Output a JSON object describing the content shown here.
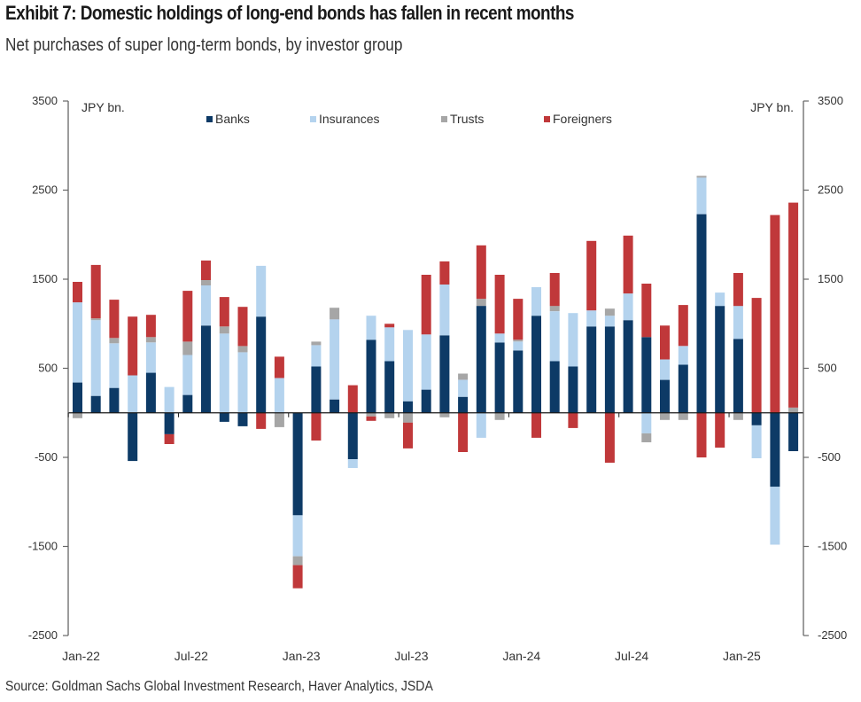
{
  "header": {
    "title": "Exhibit 7: Domestic holdings of long-end bonds has fallen in recent months",
    "subtitle": "Net purchases of super long-term bonds, by investor group"
  },
  "footer": {
    "source": "Source: Goldman Sachs Global Investment Research, Haver Analytics, JSDA"
  },
  "chart_data": {
    "type": "bar",
    "stacked": true,
    "title": "Exhibit 7: Domestic holdings of long-end bonds has fallen in recent months",
    "subtitle": "Net purchases of super long-term bonds, by investor group",
    "xlabel": "",
    "ylabel": "JPY bn.",
    "ylabel_left": "JPY bn.",
    "ylabel_right": "JPY bn.",
    "ylim": [
      -2500,
      3500
    ],
    "yticks": [
      3500,
      2500,
      1500,
      500,
      -500,
      -1500,
      -2500
    ],
    "grid": false,
    "legend_position": "top-center",
    "x_tick_labels": [
      {
        "index": 0,
        "label": "Jan-22"
      },
      {
        "index": 6,
        "label": "Jul-22"
      },
      {
        "index": 12,
        "label": "Jan-23"
      },
      {
        "index": 18,
        "label": "Jul-23"
      },
      {
        "index": 24,
        "label": "Jan-24"
      },
      {
        "index": 30,
        "label": "Jul-24"
      },
      {
        "index": 36,
        "label": "Jan-25"
      }
    ],
    "categories": [
      "Jan-22",
      "Feb-22",
      "Mar-22",
      "Apr-22",
      "May-22",
      "Jun-22",
      "Jul-22",
      "Aug-22",
      "Sep-22",
      "Oct-22",
      "Nov-22",
      "Dec-22",
      "Jan-23",
      "Feb-23",
      "Mar-23",
      "Apr-23",
      "May-23",
      "Jun-23",
      "Jul-23",
      "Aug-23",
      "Sep-23",
      "Oct-23",
      "Nov-23",
      "Dec-23",
      "Jan-24",
      "Feb-24",
      "Mar-24",
      "Apr-24",
      "May-24",
      "Jun-24",
      "Jul-24",
      "Aug-24",
      "Sep-24",
      "Oct-24",
      "Nov-24",
      "Dec-24",
      "Jan-25",
      "Feb-25",
      "Mar-25",
      "Apr-25"
    ],
    "series": [
      {
        "name": "Banks",
        "color": "#0d3a66",
        "values": [
          340,
          190,
          280,
          -540,
          450,
          -240,
          200,
          980,
          -100,
          -150,
          1080,
          0,
          -1150,
          520,
          150,
          -520,
          820,
          580,
          130,
          260,
          870,
          180,
          1200,
          790,
          700,
          1090,
          580,
          520,
          970,
          970,
          1040,
          850,
          370,
          540,
          2230,
          1200,
          830,
          -140,
          -830,
          -430
        ]
      },
      {
        "name": "Insurances",
        "color": "#b4d3ee",
        "values": [
          900,
          850,
          500,
          420,
          340,
          290,
          450,
          450,
          890,
          680,
          570,
          390,
          -460,
          240,
          900,
          -100,
          270,
          380,
          800,
          620,
          570,
          190,
          -280,
          100,
          100,
          320,
          560,
          600,
          180,
          120,
          300,
          -230,
          230,
          210,
          410,
          150,
          370,
          -370,
          -650,
          0
        ]
      },
      {
        "name": "Trusts",
        "color": "#a6a6a6",
        "values": [
          -60,
          20,
          60,
          0,
          60,
          0,
          150,
          60,
          80,
          70,
          0,
          -160,
          -100,
          40,
          130,
          0,
          -40,
          -60,
          -110,
          0,
          -50,
          70,
          80,
          -80,
          20,
          0,
          60,
          0,
          0,
          80,
          0,
          -100,
          -80,
          -80,
          20,
          0,
          -80,
          0,
          0,
          60
        ]
      },
      {
        "name": "Foreigners",
        "color": "#c0383a",
        "values": [
          230,
          600,
          430,
          660,
          250,
          -110,
          570,
          220,
          330,
          440,
          -180,
          240,
          -260,
          -310,
          0,
          310,
          -50,
          40,
          -290,
          670,
          260,
          -440,
          600,
          660,
          460,
          -280,
          370,
          -170,
          780,
          -560,
          650,
          600,
          380,
          460,
          -500,
          -390,
          370,
          1290,
          2220,
          2300
        ]
      }
    ]
  }
}
